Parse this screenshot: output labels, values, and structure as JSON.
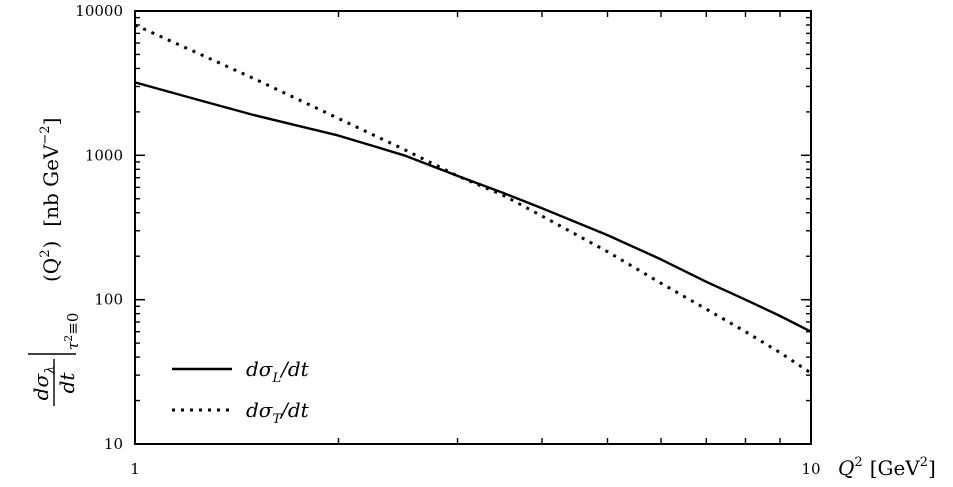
{
  "chart_data": {
    "type": "line",
    "x_scale": "log",
    "y_scale": "log",
    "xlim": [
      1,
      10
    ],
    "ylim": [
      10,
      10000
    ],
    "x_ticks": [
      1,
      10
    ],
    "x_tick_labels": [
      "1",
      "10"
    ],
    "y_ticks": [
      10,
      100,
      1000,
      10000
    ],
    "y_tick_labels": [
      "10",
      "100",
      "1000",
      "10000"
    ],
    "xlabel": {
      "symbol": "Q",
      "exp": "2",
      "unit": "[GeV",
      "unit_exp": "2",
      "close": "]"
    },
    "ylabel": {
      "frac_top": "dσ",
      "frac_top_sub": "λ",
      "frac_bottom": "dt",
      "eval": "τ",
      "eval_exp": "2",
      "eval_rest": "≡0",
      "arg": "(Q",
      "arg_exp": "2",
      "arg_close": ")",
      "unit": "[nb GeV",
      "unit_exp": "−2",
      "unit_close": "]"
    },
    "grid": false,
    "legend_position": "bottom-left",
    "series": [
      {
        "name": "dσL/dt",
        "legend": {
          "pre": "dσ",
          "sub": "L",
          "post": "/dt"
        },
        "style": "solid",
        "color": "#000000",
        "x": [
          1,
          1.25,
          1.5,
          2,
          2.5,
          3,
          3.5,
          4,
          5,
          6,
          7,
          8,
          9,
          10
        ],
        "y": [
          3200,
          2400,
          1900,
          1370,
          1000,
          720,
          550,
          430,
          280,
          190,
          133,
          100,
          77,
          60
        ]
      },
      {
        "name": "dσT/dt",
        "legend": {
          "pre": "dσ",
          "sub": "T",
          "post": "/dt"
        },
        "style": "dotted",
        "color": "#000000",
        "x": [
          1,
          1.25,
          1.5,
          2,
          2.5,
          3,
          3.5,
          4,
          5,
          6,
          7,
          8,
          9,
          10
        ],
        "y": [
          8000,
          5000,
          3400,
          1800,
          1100,
          720,
          530,
          380,
          215,
          130,
          86,
          60,
          43,
          31
        ]
      }
    ]
  }
}
